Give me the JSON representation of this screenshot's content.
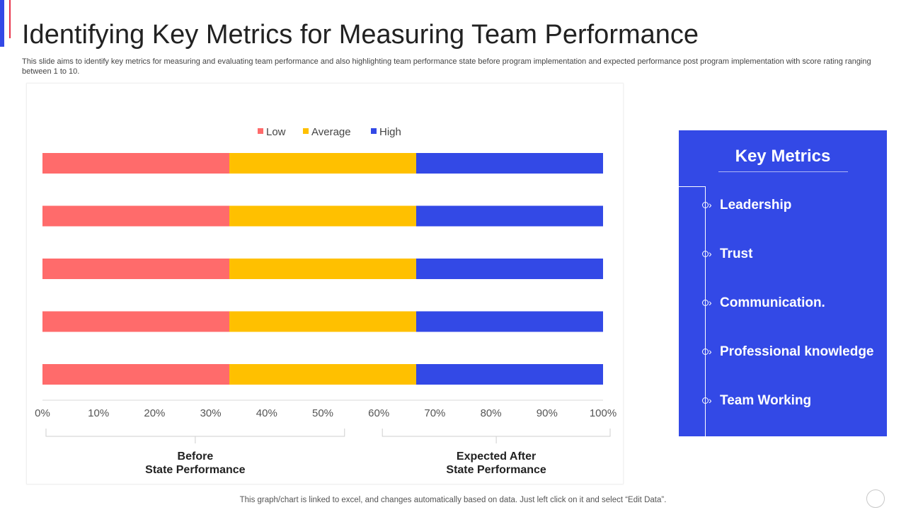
{
  "page": {
    "title": "Identifying Key Metrics for Measuring Team Performance",
    "subtitle": "This slide aims to identify key metrics for measuring and evaluating team performance and also highlighting team performance state before program implementation and expected performance post program implementation with score rating ranging between 1 to 10.",
    "footer_note": "This graph/chart is linked to excel,  and changes automatically based on data. Just left click on it and select “Edit Data”."
  },
  "colors": {
    "accent": "#3349E6",
    "accent_line": "#E8334A",
    "low": "#FF6B6B",
    "average": "#FFC000",
    "high": "#3349E6"
  },
  "metrics_panel": {
    "title": "Key Metrics",
    "items": [
      "Leadership",
      "Trust",
      "Communication.",
      "Professional knowledge",
      "Team Working"
    ],
    "item_icon": "chevron-right-icon"
  },
  "chart_data": {
    "type": "bar",
    "orientation": "horizontal",
    "stacked": "percent",
    "categories": [
      "Leadership",
      "Trust",
      "Communication.",
      "Professional knowledge",
      "Team Working"
    ],
    "series": [
      {
        "name": "Low",
        "values": [
          33.3,
          33.3,
          33.3,
          33.3,
          33.3
        ],
        "color": "#FF6B6B"
      },
      {
        "name": "Average",
        "values": [
          33.3,
          33.3,
          33.3,
          33.3,
          33.3
        ],
        "color": "#FFC000"
      },
      {
        "name": "High",
        "values": [
          33.3,
          33.3,
          33.3,
          33.3,
          33.3
        ],
        "color": "#3349E6"
      }
    ],
    "x_ticks": [
      "0%",
      "10%",
      "20%",
      "30%",
      "40%",
      "50%",
      "60%",
      "70%",
      "80%",
      "90%",
      "100%"
    ],
    "xlim": [
      0,
      100
    ],
    "legend_position": "top-center",
    "grid": false,
    "brackets": [
      {
        "label_lines": [
          "Before",
          "State Performance"
        ],
        "range": [
          0,
          53
        ]
      },
      {
        "label_lines": [
          "Expected After",
          "State Performance"
        ],
        "range": [
          60,
          100
        ]
      }
    ]
  }
}
